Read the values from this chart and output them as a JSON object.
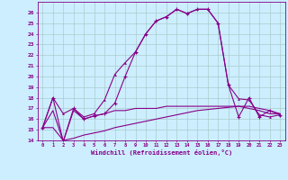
{
  "xlabel": "Windchill (Refroidissement éolien,°C)",
  "bg_color": "#cceeff",
  "grid_color": "#aacccc",
  "line_color": "#880088",
  "hours": [
    0,
    1,
    2,
    3,
    4,
    5,
    6,
    7,
    8,
    9,
    10,
    11,
    12,
    13,
    14,
    15,
    16,
    17,
    18,
    19,
    20,
    21,
    22,
    23
  ],
  "temp": [
    15.2,
    18.0,
    16.5,
    17.0,
    16.2,
    16.5,
    17.8,
    20.2,
    21.3,
    22.3,
    24.0,
    25.2,
    25.6,
    26.3,
    25.9,
    26.3,
    26.3,
    25.0,
    19.2,
    17.9,
    17.8,
    16.4,
    16.2,
    16.4
  ],
  "windchill": [
    15.2,
    18.0,
    13.9,
    17.0,
    16.0,
    16.3,
    16.5,
    17.5,
    20.0,
    22.3,
    24.0,
    25.2,
    25.6,
    26.3,
    25.9,
    26.3,
    26.3,
    25.0,
    19.2,
    16.2,
    18.0,
    16.2,
    16.8,
    16.4
  ],
  "baseline": [
    15.2,
    16.8,
    13.9,
    16.8,
    16.0,
    16.3,
    16.5,
    16.8,
    16.8,
    17.0,
    17.0,
    17.0,
    17.2,
    17.2,
    17.2,
    17.2,
    17.2,
    17.2,
    17.2,
    17.2,
    17.0,
    16.8,
    16.5,
    16.5
  ],
  "minline": [
    15.2,
    15.2,
    14.0,
    14.2,
    14.5,
    14.7,
    14.9,
    15.2,
    15.4,
    15.6,
    15.8,
    16.0,
    16.2,
    16.4,
    16.6,
    16.8,
    16.9,
    17.0,
    17.1,
    17.2,
    17.2,
    17.0,
    16.8,
    16.5
  ],
  "ylim": [
    14,
    27
  ],
  "xlim": [
    0,
    23
  ]
}
